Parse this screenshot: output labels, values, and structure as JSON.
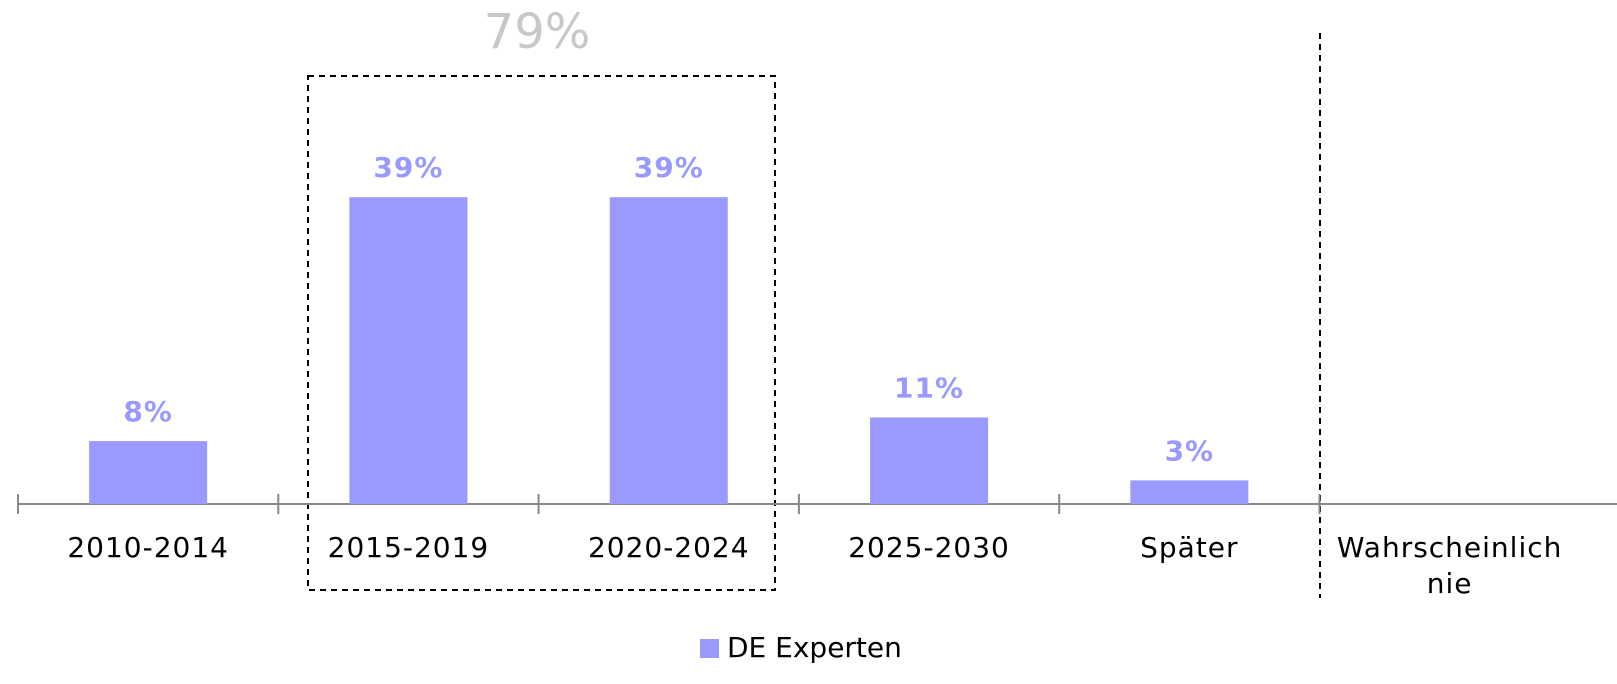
{
  "chart_data": {
    "type": "bar",
    "categories": [
      "2010-2014",
      "2015-2019",
      "2020-2024",
      "2025-2030",
      "Später",
      "Wahrscheinlich nie"
    ],
    "series": [
      {
        "name": "DE Experten",
        "color": "#9999ff",
        "values": [
          8,
          39,
          39,
          11,
          3,
          null
        ],
        "value_labels": [
          "8%",
          "39%",
          "39%",
          "11%",
          "3%",
          null
        ]
      }
    ],
    "annotations": [
      {
        "text": "79%"
      }
    ],
    "ylim": [
      0,
      60
    ],
    "legend": "bottom"
  }
}
